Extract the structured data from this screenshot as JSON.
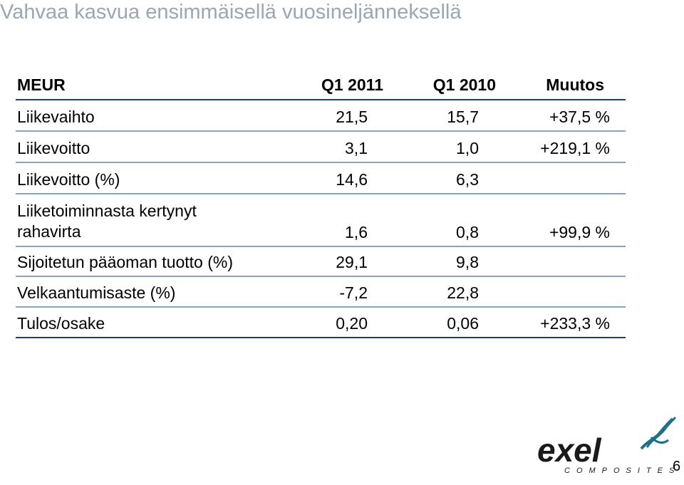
{
  "slide": {
    "title": "Vahvaa kasvua ensimmäisellä vuosineljänneksellä",
    "page_number": "6"
  },
  "table": {
    "headers": [
      "MEUR",
      "Q1 2011",
      "Q1 2010",
      "Muutos"
    ],
    "rows": [
      {
        "label": "Liikevaihto",
        "q1_2011": "21,5",
        "q1_2010": "15,7",
        "change": "+37,5 %"
      },
      {
        "label": "Liikevoitto",
        "q1_2011": "3,1",
        "q1_2010": "1,0",
        "change": "+219,1 %"
      },
      {
        "label": "Liikevoitto (%)",
        "q1_2011": "14,6",
        "q1_2010": "6,3",
        "change": ""
      },
      {
        "label": "Liiketoiminnasta kertynyt rahavirta",
        "label_line1": "Liiketoiminnasta kertynyt",
        "label_line2": "rahavirta",
        "q1_2011": "1,6",
        "q1_2010": "0,8",
        "change": "+99,9 %"
      },
      {
        "label": "Sijoitetun pääoman tuotto (%)",
        "q1_2011": "29,1",
        "q1_2010": "9,8",
        "change": ""
      },
      {
        "label": "Velkaantumisaste (%)",
        "q1_2011": "-7,2",
        "q1_2010": "22,8",
        "change": ""
      },
      {
        "label": "Tulos/osake",
        "q1_2011": "0,20",
        "q1_2010": "0,06",
        "change": "+233,3 %"
      }
    ]
  },
  "logo": {
    "wordmark": "exel",
    "subtext": "COMPOSITES",
    "colors": {
      "text": "#1a1a1a",
      "accent": "#1f6f8b"
    }
  }
}
